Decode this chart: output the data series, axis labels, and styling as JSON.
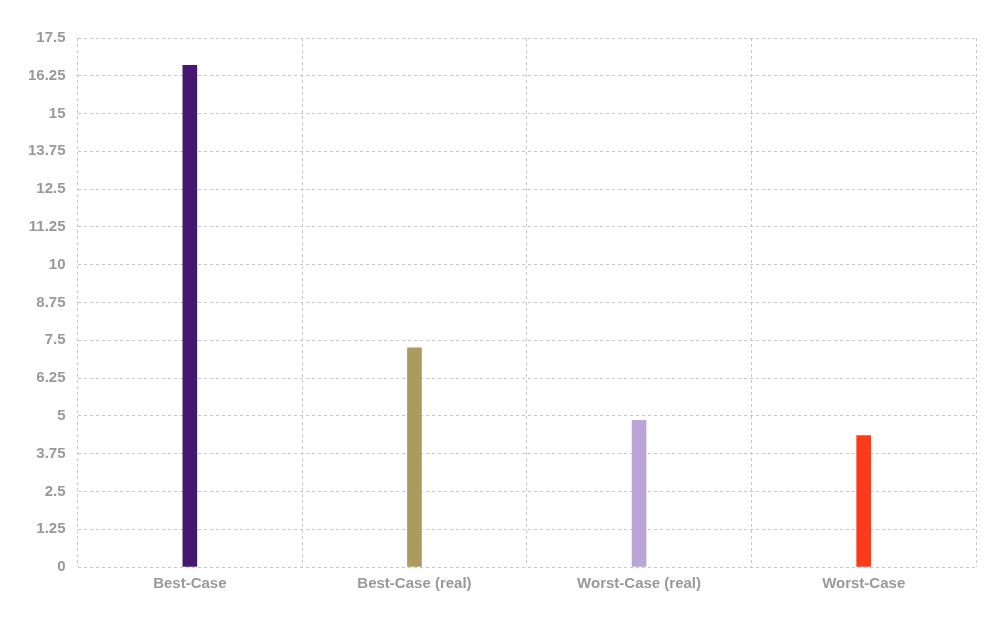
{
  "chart_data": {
    "type": "bar",
    "categories": [
      "Best-Case",
      "Best-Case (real)",
      "Worst-Case (real)",
      "Worst-Case"
    ],
    "values": [
      16.6,
      7.25,
      4.85,
      4.35
    ],
    "colors": [
      "#44186f",
      "#ab9b60",
      "#b9a5d6",
      "#fc3b1c"
    ],
    "ylim": [
      0,
      17.5
    ],
    "yticks": [
      0,
      1.25,
      2.5,
      3.75,
      5,
      6.25,
      7.5,
      8.75,
      10,
      11.25,
      12.5,
      13.75,
      15,
      16.25,
      17.5
    ],
    "grid": true,
    "legend": false
  }
}
